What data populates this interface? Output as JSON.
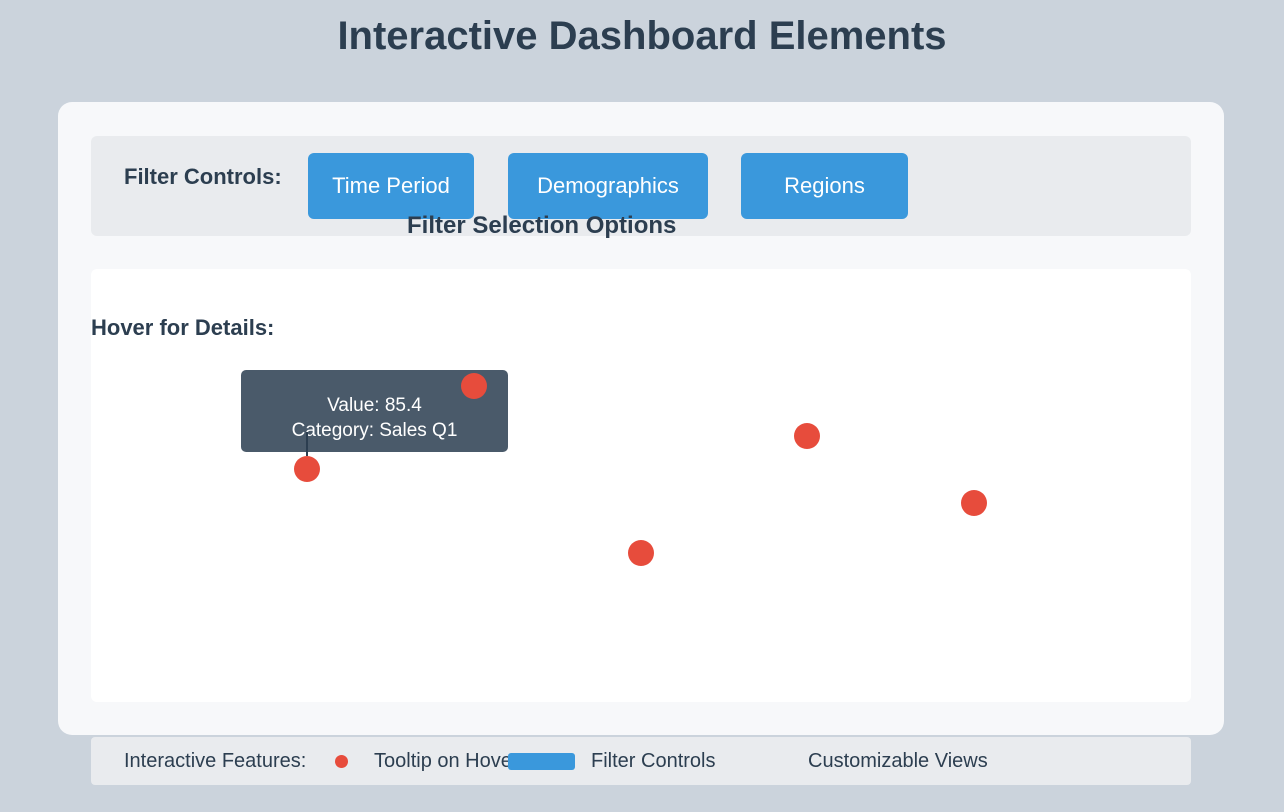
{
  "title": "Interactive Dashboard Elements",
  "filters": {
    "label": "Filter Controls:",
    "buttons": [
      "Time Period",
      "Demographics",
      "Regions"
    ],
    "caption": "Filter Selection Options"
  },
  "hover": {
    "label": "Hover for Details:",
    "tooltip": {
      "line1": "Value: 85.4",
      "line2": "Category: Sales Q1"
    }
  },
  "legend": {
    "label": "Interactive Features:",
    "items": [
      "Tooltip on Hover",
      "Filter Controls",
      "Customizable Views"
    ]
  },
  "colors": {
    "background": "#cbd3dc",
    "accent": "#3a98dc",
    "point": "#e74c3c",
    "tooltip": "#4a5a6a",
    "text": "#2c3e50"
  }
}
